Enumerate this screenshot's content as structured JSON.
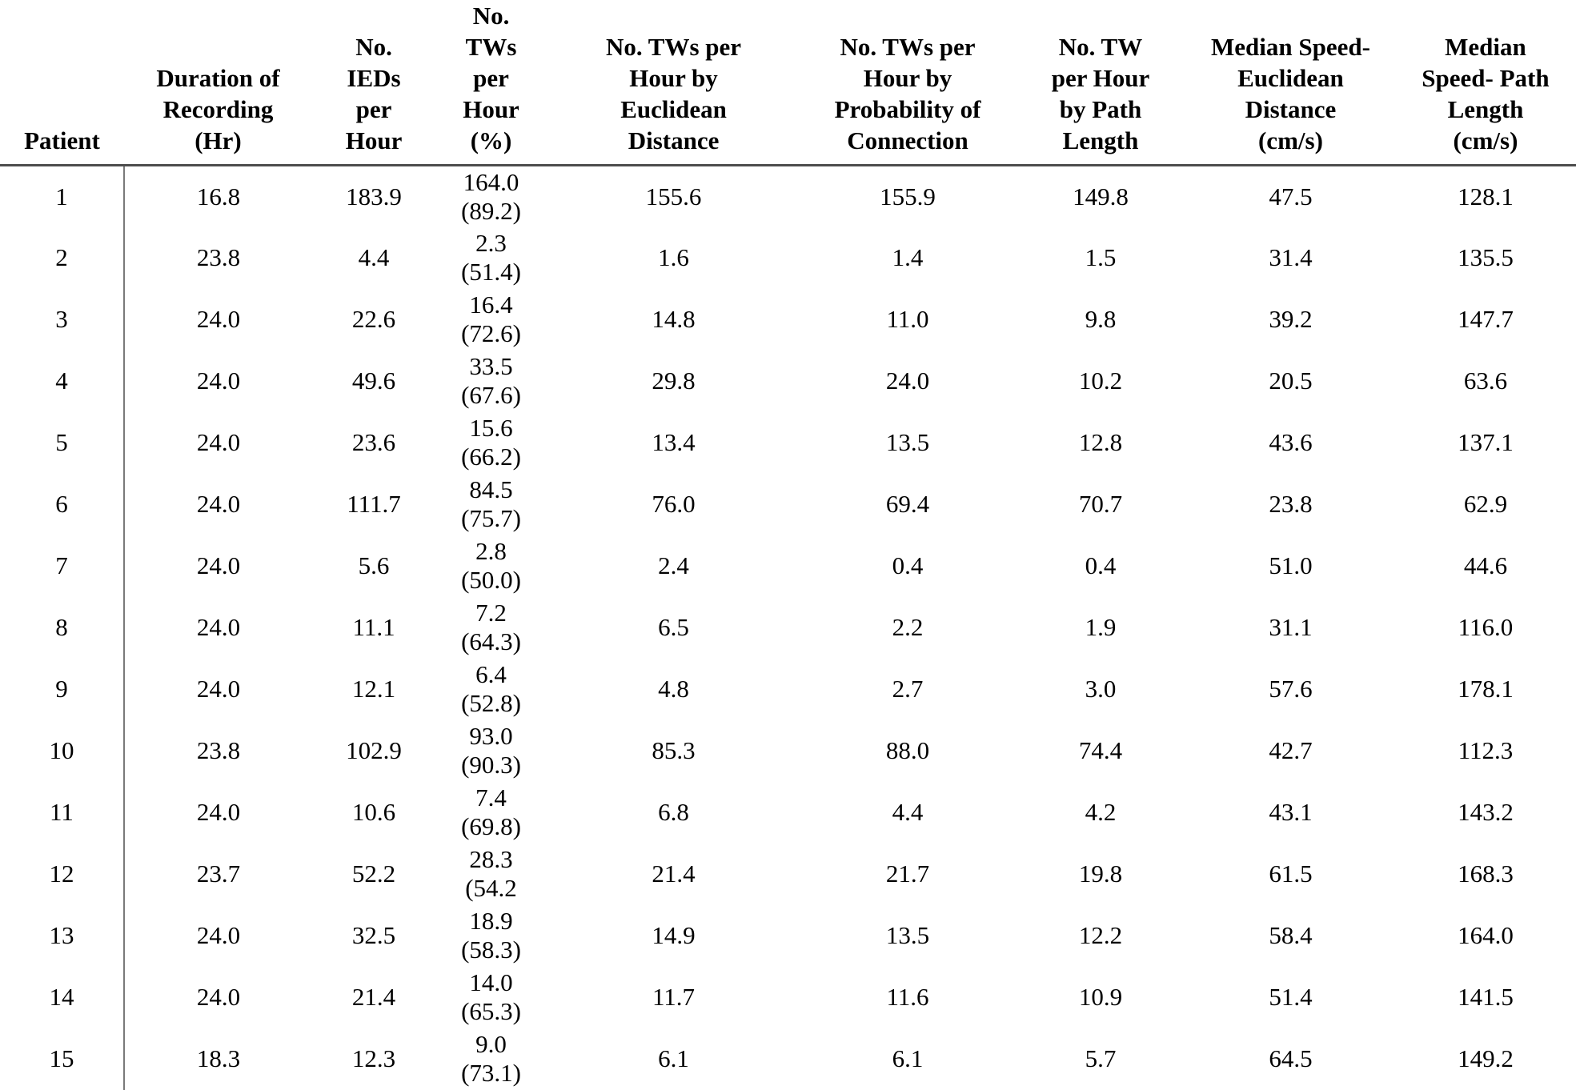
{
  "colors": {
    "background": "#ffffff",
    "text": "#000000",
    "header_rule": "#4d4d4d",
    "patient_column_divider": "#7a7a7a"
  },
  "table": {
    "columns": [
      {
        "key": "patient",
        "label": "Patient"
      },
      {
        "key": "duration_hr",
        "label": "Duration of\nRecording\n(Hr)"
      },
      {
        "key": "ieds_per_hour",
        "label": "No.\nIEDs\nper\nHour"
      },
      {
        "key": "tws_per_hour_pct",
        "label": "No.\nTWs\nper\nHour\n(%)"
      },
      {
        "key": "tws_per_hour_euclidean",
        "label": "No. TWs per\nHour by\nEuclidean\nDistance"
      },
      {
        "key": "tws_per_hour_probability",
        "label": "No. TWs per\nHour by\nProbability of\nConnection"
      },
      {
        "key": "tw_per_hour_path_length",
        "label": "No. TW\nper Hour\nby Path\nLength"
      },
      {
        "key": "median_speed_euclidean",
        "label": "Median Speed-\nEuclidean\nDistance\n(cm/s)"
      },
      {
        "key": "median_speed_path_length",
        "label": "Median\nSpeed- Path\nLength\n(cm/s)"
      }
    ],
    "rows": [
      [
        "1",
        "16.8",
        "183.9",
        "164.0\n(89.2)",
        "155.6",
        "155.9",
        "149.8",
        "47.5",
        "128.1"
      ],
      [
        "2",
        "23.8",
        "4.4",
        "2.3\n(51.4)",
        "1.6",
        "1.4",
        "1.5",
        "31.4",
        "135.5"
      ],
      [
        "3",
        "24.0",
        "22.6",
        "16.4\n(72.6)",
        "14.8",
        "11.0",
        "9.8",
        "39.2",
        "147.7"
      ],
      [
        "4",
        "24.0",
        "49.6",
        "33.5\n(67.6)",
        "29.8",
        "24.0",
        "10.2",
        "20.5",
        "63.6"
      ],
      [
        "5",
        "24.0",
        "23.6",
        "15.6\n(66.2)",
        "13.4",
        "13.5",
        "12.8",
        "43.6",
        "137.1"
      ],
      [
        "6",
        "24.0",
        "111.7",
        "84.5\n(75.7)",
        "76.0",
        "69.4",
        "70.7",
        "23.8",
        "62.9"
      ],
      [
        "7",
        "24.0",
        "5.6",
        "2.8\n(50.0)",
        "2.4",
        "0.4",
        "0.4",
        "51.0",
        "44.6"
      ],
      [
        "8",
        "24.0",
        "11.1",
        "7.2\n(64.3)",
        "6.5",
        "2.2",
        "1.9",
        "31.1",
        "116.0"
      ],
      [
        "9",
        "24.0",
        "12.1",
        "6.4\n(52.8)",
        "4.8",
        "2.7",
        "3.0",
        "57.6",
        "178.1"
      ],
      [
        "10",
        "23.8",
        "102.9",
        "93.0\n(90.3)",
        "85.3",
        "88.0",
        "74.4",
        "42.7",
        "112.3"
      ],
      [
        "11",
        "24.0",
        "10.6",
        "7.4\n(69.8)",
        "6.8",
        "4.4",
        "4.2",
        "43.1",
        "143.2"
      ],
      [
        "12",
        "23.7",
        "52.2",
        "28.3\n(54.2",
        "21.4",
        "21.7",
        "19.8",
        "61.5",
        "168.3"
      ],
      [
        "13",
        "24.0",
        "32.5",
        "18.9\n(58.3)",
        "14.9",
        "13.5",
        "12.2",
        "58.4",
        "164.0"
      ],
      [
        "14",
        "24.0",
        "21.4",
        "14.0\n(65.3)",
        "11.7",
        "11.6",
        "10.9",
        "51.4",
        "141.5"
      ],
      [
        "15",
        "18.3",
        "12.3",
        "9.0\n(73.1)",
        "6.1",
        "6.1",
        "5.7",
        "64.5",
        "149.2"
      ]
    ]
  }
}
